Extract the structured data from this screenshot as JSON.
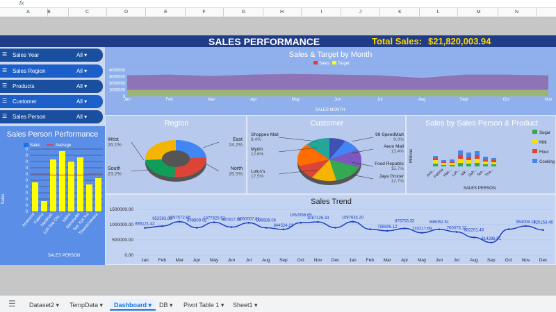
{
  "formula_bar": {
    "fx": "fx"
  },
  "columns": [
    "A",
    "B",
    "C",
    "D",
    "E",
    "F",
    "G",
    "H",
    "I",
    "J",
    "K",
    "L",
    "M",
    "N"
  ],
  "banner": {
    "title": "SALES PERFORMANCE",
    "total_label": "Total Sales:",
    "total_value": "$21,820,003.94"
  },
  "slicers": [
    {
      "label": "Sales Year",
      "value": "All"
    },
    {
      "label": "Sales Region",
      "value": "All"
    },
    {
      "label": "Products",
      "value": "All"
    },
    {
      "label": "Customer",
      "value": "All"
    },
    {
      "label": "Sales Person",
      "value": "All"
    }
  ],
  "colors": {
    "banner": "#1f3c88",
    "slicer": "#1d5fc9",
    "accent_yellow": "#ffff00",
    "trend_line": "#1a3fbf"
  },
  "chart_data": [
    {
      "type": "area",
      "title": "Sales & Target by Month",
      "xlabel": "SALES MONTH",
      "categories": [
        "Jan",
        "Feb",
        "Mar",
        "Apr",
        "May",
        "Jun",
        "Jul",
        "Aug",
        "Sept",
        "Oct",
        "Nov"
      ],
      "yticks": [
        "4000000",
        "3000000",
        "2000000",
        "1000000",
        "0"
      ],
      "legend": [
        "Sales",
        "Target"
      ],
      "legend_position": "top",
      "series": [
        {
          "name": "Sales",
          "values": [
            3200000,
            3300000,
            3100000,
            3300000,
            3400000,
            3300000,
            3200000,
            2800000,
            3300000,
            3300000,
            3200000
          ]
        },
        {
          "name": "Target",
          "values": [
            1000000,
            1000000,
            1000000,
            1000000,
            1000000,
            1000000,
            1000000,
            1000000,
            1000000,
            1000000,
            1000000
          ]
        }
      ]
    },
    {
      "type": "pie",
      "title": "Region",
      "slices": [
        {
          "name": "West",
          "pct": "26.1%",
          "value": 26.1,
          "color": "#f4b400"
        },
        {
          "name": "East",
          "pct": "24.2%",
          "value": 24.2,
          "color": "#4285f4"
        },
        {
          "name": "North",
          "pct": "26.5%",
          "value": 26.5,
          "color": "#db4437"
        },
        {
          "name": "South",
          "pct": "23.2%",
          "value": 23.2,
          "color": "#0f9d58"
        }
      ]
    },
    {
      "type": "pie",
      "title": "Customer",
      "slices": [
        {
          "name": "Shoppee Mall",
          "pct": "8.4%",
          "value": 8.4,
          "color": "#3f51b5"
        },
        {
          "name": "99 SpeedMart",
          "pct": "9.0%",
          "value": 9.0,
          "color": "#4285f4"
        },
        {
          "name": "Aeon Mall",
          "pct": "13.4%",
          "value": 13.4,
          "color": "#7e57c2"
        },
        {
          "name": "Mydin",
          "pct": "12.6%",
          "value": 12.6,
          "color": "#26a69a"
        },
        {
          "name": "Food Republic",
          "pct": "15.7%",
          "value": 15.7,
          "color": "#34a853"
        },
        {
          "name": "Lotus's",
          "pct": "17.5%",
          "value": 17.5,
          "color": "#ff6d00"
        },
        {
          "name": "Jaya Grocer",
          "pct": "12.7%",
          "value": 12.7,
          "color": "#f4b400"
        },
        {
          "name": "",
          "pct": "",
          "value": 10.7,
          "color": "#db4437"
        }
      ]
    },
    {
      "type": "bar",
      "title": "Sales by Sales Person & Product",
      "xlabel": "SALES PERSON",
      "ylabel": "Millions",
      "legend": [
        "Sugar",
        "Milk",
        "Flour",
        "Cooking Oil"
      ],
      "legend_colors": [
        "#34a853",
        "#f4e400",
        "#db4437",
        "#4285f4"
      ],
      "categories": [
        "Ami...",
        "Fatima",
        "Has...",
        "Loh...",
        "Nik...",
        "Sah...",
        "Tee...",
        "Tha..."
      ]
    },
    {
      "type": "bar",
      "title": "Sales Person Performance",
      "xlabel": "SALES PERSON",
      "ylabel": "Sales",
      "legend": [
        "Sales",
        "Average"
      ],
      "yticks": [
        "0",
        "0",
        "0",
        "0",
        "0",
        "0",
        "0",
        "0",
        "0",
        "0",
        "0"
      ],
      "categories": [
        "Aminurrd",
        "Fatima",
        "Haslinah",
        "Loh Yee Chi...",
        "Nikko",
        "Saharudin",
        "Tee Yuh Yui",
        "Thamsrinivasa"
      ],
      "values": [
        1400000,
        500000,
        2500000,
        2900000,
        2400000,
        2600000,
        1300000,
        1600000
      ],
      "average": 1750000
    },
    {
      "type": "line",
      "title": "Sales Trend",
      "yticks": [
        "1500000.00",
        "1000000.00",
        "500000.00",
        "0.00"
      ],
      "categories": [
        "Jan",
        "Feb",
        "Mar",
        "Apr",
        "May",
        "Jun",
        "Jul",
        "Aug",
        "Sep",
        "Oct",
        "Nov",
        "Dec",
        "Jan",
        "Feb",
        "Mar",
        "Apr",
        "May",
        "Jun",
        "Jul",
        "Aug",
        "Sep",
        "Oct",
        "Nov",
        "Dec"
      ],
      "labels": [
        "895121.42",
        "952593.89",
        "1097572.86",
        "898809.02",
        "1077820.51",
        "920317.58",
        "1060007.81",
        "896588.05",
        "844524.23",
        "1062936.65",
        "1087126.33",
        "",
        "1097634.20",
        "",
        "795905.12",
        "876755.33",
        "733217.69",
        "846052.51",
        "760373.12",
        "582201.46",
        "414286.51",
        "",
        "954008.18",
        "825153.46"
      ],
      "values": [
        895121,
        952594,
        1097573,
        898809,
        1077821,
        920318,
        1060008,
        896588,
        844524,
        1062937,
        1087126,
        900000,
        1097634,
        850000,
        795905,
        876755,
        733218,
        846053,
        760373,
        582201,
        414287,
        850000,
        954008,
        825153
      ]
    }
  ],
  "tabs": [
    "Dataset2",
    "TempData",
    "Dashboard",
    "DB",
    "Pivot Table 1",
    "Sheet1"
  ],
  "active_tab": "Dashboard"
}
